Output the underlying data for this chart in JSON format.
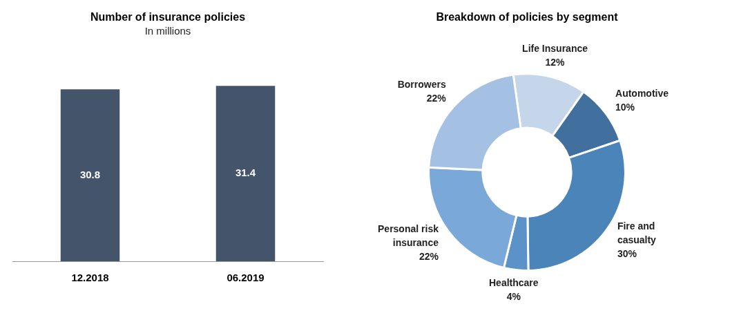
{
  "chart_data": [
    {
      "type": "bar",
      "title": "Number of insurance policies",
      "subtitle": "In millions",
      "categories": [
        "12.2018",
        "06.2019"
      ],
      "values": [
        30.8,
        31.4
      ],
      "color": "#44546a",
      "data_labels": true,
      "grid": false,
      "legend": false,
      "tick_labels": "x"
    },
    {
      "type": "donut",
      "title": "Breakdown of policies by segment",
      "categories": [
        "Life Insurance",
        "Automotive",
        "Fire and casualty",
        "Healthcare",
        "Personal risk insurance",
        "Borrowers"
      ],
      "values": [
        12,
        10,
        30,
        4,
        22,
        22
      ],
      "value_labels": [
        "12%",
        "10%",
        "30%",
        "4%",
        "22%",
        "22%"
      ],
      "colors": [
        "#c5d5ea",
        "#41709e",
        "#4a84b8",
        "#5b92c8",
        "#7aa8d8",
        "#a4c0e2"
      ],
      "legend": false
    }
  ]
}
